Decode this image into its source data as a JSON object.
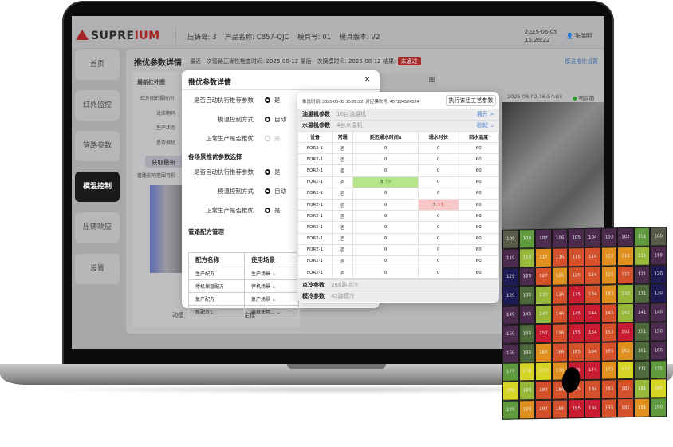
{
  "header": {
    "logo": "SUPREIUM",
    "island": "压铸岛: 3",
    "product": "产品名称: C857-QJC",
    "mold_no": "模具号: 01",
    "mold_ver": "模具版本: V2",
    "date": "2025-06-05",
    "time": "15:26:22",
    "user": "张晓明"
  },
  "sidebar": {
    "items": [
      {
        "label": "首页"
      },
      {
        "label": "红外监控"
      },
      {
        "label": "管路参数"
      },
      {
        "label": "模温控制",
        "active": true
      },
      {
        "label": "压铸响应"
      },
      {
        "label": "设置"
      }
    ]
  },
  "main": {
    "title": "推优参数详情",
    "meta1": "最近一次管路正确性检查时间: 2025-08-12",
    "meta2": "最后一次换模时间: 2025-08-12",
    "result_label": "结果:",
    "result": "未通过",
    "settings_link": "模温推优设置",
    "left_panel": {
      "title": "最新红外图",
      "rows": [
        "红外图拍摄时间",
        "对应明码",
        "生产状态",
        "是否推优"
      ],
      "button": "获取最新",
      "note": "管路影响范围可视",
      "moving": "动模",
      "fixed": "定模"
    },
    "tab_partial": "图",
    "camera_time": "2025-08-02 16:54:03",
    "camera_status": "喷涂前"
  },
  "dialog": {
    "title": "推优参数详情",
    "rows": [
      {
        "label": "是否自动执行推荐参数",
        "value": "是",
        "checked": true
      },
      {
        "label": "模温控制方式",
        "value": "自动",
        "checked": true
      },
      {
        "label": "正常生产是否推优",
        "value": "是",
        "checked": false
      }
    ],
    "section": "各场景推优参数选择",
    "rows2": [
      {
        "label": "是否自动执行推荐参数",
        "value": "是"
      },
      {
        "label": "模温控制方式",
        "value": "自动"
      },
      {
        "label": "正常生产是否推优",
        "value": "是"
      }
    ],
    "recipe_title": "管路配方管理",
    "recipe_headers": [
      "配方名称",
      "使用场景"
    ],
    "recipes": [
      [
        "生产配方",
        "生产场景"
      ],
      [
        "停机保温配方",
        "停机场景"
      ],
      [
        "复产配方",
        "复产场景"
      ],
      [
        "新配方1",
        "选择使用..."
      ]
    ]
  },
  "detail": {
    "time": "推优时间: 2025-06-05 15:26:22",
    "shot": "对应模次号: 457124524524",
    "execute": "执行该组工艺参数",
    "oil": {
      "label": "油温机参数",
      "sub": "16台油温机",
      "action": "展开 >"
    },
    "water": {
      "label": "水温机参数",
      "sub": "4台水温机",
      "action": "收起 ⌄"
    },
    "headers": [
      "设备",
      "常通",
      "延迟通水时间s",
      "通水时长",
      "回水温度"
    ],
    "rows": [
      [
        "FOR2-1",
        "否",
        "0",
        "0",
        "60"
      ],
      [
        "FOR2-1",
        "否",
        "0",
        "0",
        "60"
      ],
      [
        "FOR2-1",
        "否",
        "0",
        "0",
        "60"
      ],
      [
        "FOR2-1",
        "否",
        "5 ↑5",
        "0",
        "60"
      ],
      [
        "FOR2-1",
        "否",
        "0",
        "0",
        "60"
      ],
      [
        "FOR2-1",
        "否",
        "0",
        "5 ↓5",
        "60"
      ],
      [
        "FOR2-1",
        "否",
        "0",
        "0",
        "60"
      ],
      [
        "FOR2-1",
        "否",
        "0",
        "0",
        "60"
      ],
      [
        "FOR2-1",
        "否",
        "0",
        "0",
        "60"
      ],
      [
        "FOR2-1",
        "否",
        "0",
        "0",
        "60"
      ],
      [
        "FOR2-1",
        "否",
        "0",
        "0",
        "60"
      ],
      [
        "FOR2-1",
        "否",
        "0",
        "0",
        "60"
      ]
    ],
    "spot": {
      "label": "点冷参数",
      "sub": "288路点冷"
    },
    "mold": {
      "label": "模冷参数",
      "sub": "42路模冷"
    }
  },
  "heatmap": {
    "colors": {
      "P": "#4b2b4e",
      "D": "#1f1c55",
      "G": "#5f9a3c",
      "O": "#4f6a3a",
      "L": "#98b83a",
      "Y": "#d6d424",
      "A": "#e0901f",
      "R": "#d4512b",
      "C": "#c81c32",
      "K": "#5a5a4a"
    },
    "rows": [
      [
        [
          109,
          "K"
        ],
        [
          108,
          "G"
        ],
        [
          107,
          "P"
        ],
        [
          106,
          "P"
        ],
        [
          105,
          "P"
        ],
        [
          104,
          "P"
        ],
        [
          103,
          "P"
        ],
        [
          102,
          "P"
        ],
        [
          101,
          "G"
        ],
        [
          100,
          "K"
        ]
      ],
      [
        [
          119,
          "P"
        ],
        [
          118,
          "L"
        ],
        [
          117,
          "A"
        ],
        [
          116,
          "R"
        ],
        [
          115,
          "R"
        ],
        [
          114,
          "R"
        ],
        [
          113,
          "A"
        ],
        [
          112,
          "A"
        ],
        [
          111,
          "L"
        ],
        [
          110,
          "P"
        ]
      ],
      [
        [
          129,
          "D"
        ],
        [
          128,
          "P"
        ],
        [
          127,
          "R"
        ],
        [
          126,
          "A"
        ],
        [
          125,
          "R"
        ],
        [
          124,
          "R"
        ],
        [
          123,
          "A"
        ],
        [
          122,
          "R"
        ],
        [
          121,
          "P"
        ],
        [
          120,
          "D"
        ]
      ],
      [
        [
          139,
          "D"
        ],
        [
          138,
          "O"
        ],
        [
          137,
          "L"
        ],
        [
          136,
          "R"
        ],
        [
          135,
          "C"
        ],
        [
          134,
          "R"
        ],
        [
          133,
          "A"
        ],
        [
          132,
          "L"
        ],
        [
          131,
          "O"
        ],
        [
          130,
          "D"
        ]
      ],
      [
        [
          149,
          "P"
        ],
        [
          148,
          "P"
        ],
        [
          147,
          "L"
        ],
        [
          146,
          "R"
        ],
        [
          145,
          "C"
        ],
        [
          144,
          "C"
        ],
        [
          143,
          "R"
        ],
        [
          142,
          "L"
        ],
        [
          141,
          "P"
        ],
        [
          140,
          "P"
        ]
      ],
      [
        [
          159,
          "P"
        ],
        [
          158,
          "O"
        ],
        [
          157,
          "C"
        ],
        [
          156,
          "R"
        ],
        [
          155,
          "C"
        ],
        [
          154,
          "C"
        ],
        [
          153,
          "R"
        ],
        [
          152,
          "C"
        ],
        [
          151,
          "O"
        ],
        [
          150,
          "P"
        ]
      ],
      [
        [
          169,
          "P"
        ],
        [
          168,
          "O"
        ],
        [
          167,
          "A"
        ],
        [
          166,
          "R"
        ],
        [
          165,
          "R"
        ],
        [
          164,
          "R"
        ],
        [
          163,
          "R"
        ],
        [
          162,
          "A"
        ],
        [
          161,
          "O"
        ],
        [
          160,
          "P"
        ]
      ],
      [
        [
          179,
          "G"
        ],
        [
          178,
          "Y"
        ],
        [
          177,
          "Y"
        ],
        [
          176,
          "A"
        ],
        [
          175,
          "C"
        ],
        [
          174,
          "C"
        ],
        [
          173,
          "A"
        ],
        [
          172,
          "Y"
        ],
        [
          171,
          "O"
        ],
        [
          170,
          "G"
        ]
      ],
      [
        [
          189,
          "Y"
        ],
        [
          188,
          "L"
        ],
        [
          187,
          "R"
        ],
        [
          186,
          "R"
        ],
        [
          185,
          "R"
        ],
        [
          184,
          "R"
        ],
        [
          183,
          "R"
        ],
        [
          182,
          "R"
        ],
        [
          181,
          "L"
        ],
        [
          180,
          "Y"
        ]
      ],
      [
        [
          199,
          "G"
        ],
        [
          198,
          "A"
        ],
        [
          197,
          "R"
        ],
        [
          196,
          "R"
        ],
        [
          195,
          "C"
        ],
        [
          194,
          "C"
        ],
        [
          193,
          "R"
        ],
        [
          192,
          "R"
        ],
        [
          191,
          "A"
        ],
        [
          190,
          "G"
        ]
      ]
    ]
  }
}
